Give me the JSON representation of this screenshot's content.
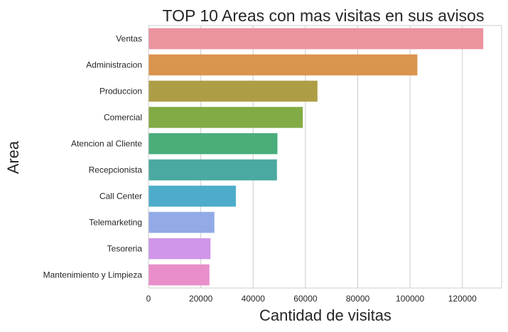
{
  "chart_data": {
    "type": "bar",
    "orientation": "horizontal",
    "title": "TOP 10 Areas con mas visitas en sus avisos",
    "xlabel": "Cantidad de visitas",
    "ylabel": "Area",
    "categories": [
      "Ventas",
      "Administracion",
      "Produccion",
      "Comercial",
      "Atencion al Cliente",
      "Recepcionista",
      "Call Center",
      "Telemarketing",
      "Tesoreria",
      "Mantenimiento y Limpieza"
    ],
    "values": [
      128000,
      102800,
      64600,
      59000,
      49300,
      49100,
      33400,
      25200,
      23700,
      23300
    ],
    "colors": [
      "#ec93a0",
      "#d9944d",
      "#ad9e46",
      "#82ab45",
      "#4aad7a",
      "#4aa9a1",
      "#4cacca",
      "#92aae7",
      "#cf96e9",
      "#e98ecb"
    ],
    "xlim": [
      0,
      135000
    ],
    "xticks": [
      0,
      20000,
      40000,
      60000,
      80000,
      100000,
      120000
    ],
    "xtick_labels": [
      "0",
      "20000",
      "40000",
      "60000",
      "80000",
      "100000",
      "120000"
    ],
    "grid": true
  }
}
